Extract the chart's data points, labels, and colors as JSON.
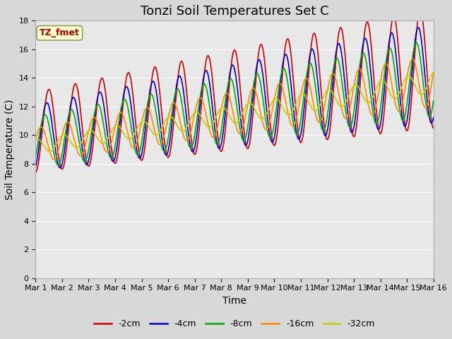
{
  "title": "Tonzi Soil Temperatures Set C",
  "xlabel": "Time",
  "ylabel": "Soil Temperature (C)",
  "ylim": [
    0,
    18
  ],
  "yticks": [
    0,
    2,
    4,
    6,
    8,
    10,
    12,
    14,
    16,
    18
  ],
  "xtick_labels": [
    "Mar 1",
    "Mar 2",
    "Mar 3",
    "Mar 4",
    "Mar 5",
    "Mar 6",
    "Mar 7",
    "Mar 8",
    "Mar 9",
    "Mar 10",
    "Mar 11",
    "Mar 12",
    "Mar 13",
    "Mar 14",
    "Mar 15",
    "Mar 16"
  ],
  "legend_label": "TZ_fmet",
  "legend_box_color": "#ffffcc",
  "legend_box_edge": "#999966",
  "lines": [
    {
      "label": "-2cm",
      "color": "#cc0000"
    },
    {
      "label": "-4cm",
      "color": "#0000cc"
    },
    {
      "label": "-8cm",
      "color": "#00aa00"
    },
    {
      "label": "-16cm",
      "color": "#ff8800"
    },
    {
      "label": "-32cm",
      "color": "#cccc00"
    }
  ],
  "bg_color": "#e8e8e8",
  "grid_color": "#ffffff",
  "title_fontsize": 13,
  "axis_fontsize": 10,
  "tick_fontsize": 8,
  "linewidth": 1.2
}
